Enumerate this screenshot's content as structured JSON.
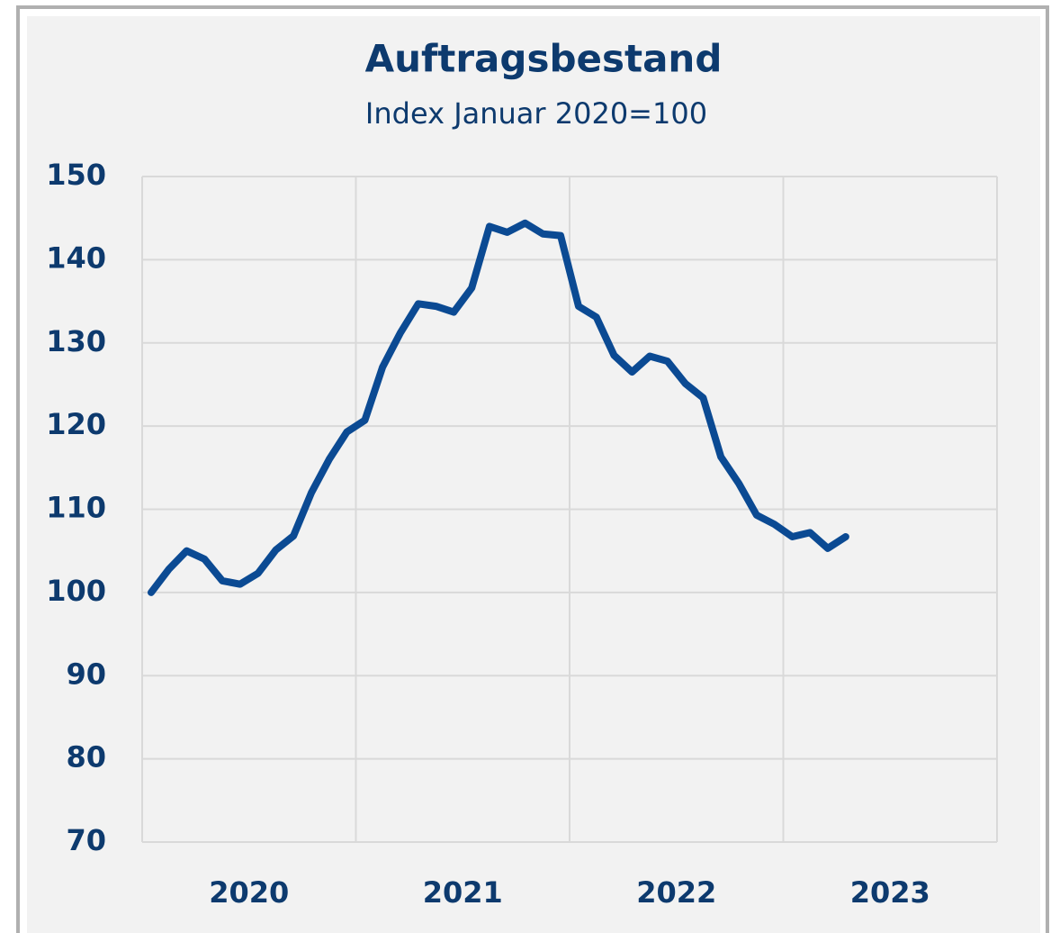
{
  "chart_data": {
    "type": "line",
    "title": "Auftragsbestand",
    "subtitle": "Index Januar 2020=100",
    "x": [
      2020.042,
      2020.125,
      2020.208,
      2020.292,
      2020.375,
      2020.458,
      2020.542,
      2020.625,
      2020.708,
      2020.792,
      2020.875,
      2020.958,
      2021.042,
      2021.125,
      2021.208,
      2021.292,
      2021.375,
      2021.458,
      2021.542,
      2021.625,
      2021.708,
      2021.792,
      2021.875,
      2021.958,
      2022.042,
      2022.125,
      2022.208,
      2022.292,
      2022.375,
      2022.458,
      2022.542,
      2022.625,
      2022.708,
      2022.792,
      2022.875,
      2022.958,
      2023.042,
      2023.125,
      2023.208,
      2023.292
    ],
    "series": [
      {
        "color": "#0b4a93",
        "values": [
          100,
          102.8,
          105.0,
          104.0,
          101.4,
          101.0,
          102.3,
          105.1,
          106.8,
          112.0,
          116.0,
          119.3,
          120.7,
          127.1,
          131.2,
          134.7,
          134.4,
          133.7,
          136.6,
          144.0,
          143.3,
          144.4,
          143.1,
          142.9,
          134.4,
          133.1,
          128.5,
          126.5,
          128.4,
          127.8,
          125.1,
          123.4,
          116.3,
          113.1,
          109.3,
          108.2,
          106.7,
          107.2,
          105.3,
          106.7
        ]
      }
    ],
    "xlim": [
      2020,
      2024
    ],
    "xticks": [
      {
        "value": 2020.5,
        "label": "2020"
      },
      {
        "value": 2021.5,
        "label": "2021"
      },
      {
        "value": 2022.5,
        "label": "2022"
      },
      {
        "value": 2023.5,
        "label": "2023"
      }
    ],
    "xgrid": [
      2020,
      2021,
      2022,
      2023,
      2024
    ],
    "ylim": [
      70,
      150
    ],
    "yticks": [
      70,
      80,
      90,
      100,
      110,
      120,
      130,
      140,
      150
    ],
    "grid": true
  }
}
